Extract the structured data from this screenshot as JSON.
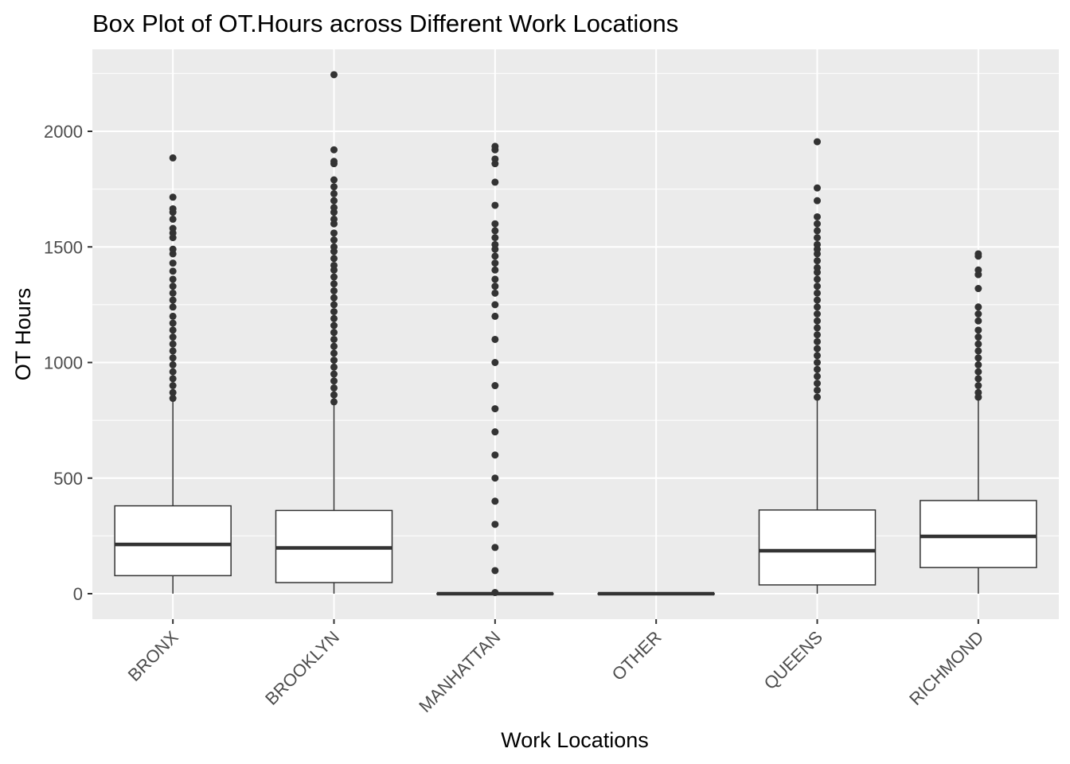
{
  "chart_data": {
    "type": "box",
    "title": "Box Plot of OT.Hours across Different Work Locations",
    "xlabel": "Work Locations",
    "ylabel": "OT Hours",
    "ylim": [
      -110,
      2345
    ],
    "yticks": [
      0,
      500,
      1000,
      1500,
      2000
    ],
    "grid": true,
    "categories": [
      "BRONX",
      "BROOKLYN",
      "MANHATTAN",
      "OTHER",
      "QUEENS",
      "RICHMOND"
    ],
    "boxes": [
      {
        "category": "BRONX",
        "whisker_low": 0,
        "q1": 78,
        "median": 213,
        "q3": 380,
        "whisker_high": 832,
        "outliers": [
          845,
          870,
          900,
          930,
          960,
          990,
          1020,
          1050,
          1080,
          1110,
          1140,
          1170,
          1200,
          1240,
          1270,
          1300,
          1330,
          1360,
          1395,
          1430,
          1470,
          1490,
          1540,
          1560,
          1580,
          1620,
          1650,
          1665,
          1715,
          1885
        ]
      },
      {
        "category": "BROOKLYN",
        "whisker_low": 0,
        "q1": 48,
        "median": 198,
        "q3": 360,
        "whisker_high": 818,
        "outliers": [
          830,
          860,
          890,
          920,
          950,
          980,
          1010,
          1040,
          1070,
          1100,
          1130,
          1160,
          1190,
          1220,
          1250,
          1280,
          1310,
          1340,
          1370,
          1400,
          1420,
          1450,
          1480,
          1500,
          1530,
          1560,
          1600,
          1620,
          1650,
          1670,
          1700,
          1730,
          1760,
          1790,
          1860,
          1870,
          1920,
          2245
        ]
      },
      {
        "category": "MANHATTAN",
        "whisker_low": 0,
        "q1": 0,
        "median": 0,
        "q3": 0,
        "whisker_high": 0,
        "outliers": [
          5,
          100,
          200,
          300,
          400,
          500,
          600,
          700,
          800,
          900,
          1000,
          1100,
          1200,
          1250,
          1300,
          1330,
          1360,
          1400,
          1430,
          1460,
          1490,
          1510,
          1540,
          1570,
          1600,
          1680,
          1780,
          1860,
          1880,
          1920,
          1935
        ]
      },
      {
        "category": "OTHER",
        "whisker_low": 0,
        "q1": 0,
        "median": 0,
        "q3": 0,
        "whisker_high": 0,
        "outliers": []
      },
      {
        "category": "QUEENS",
        "whisker_low": 0,
        "q1": 38,
        "median": 186,
        "q3": 362,
        "whisker_high": 840,
        "outliers": [
          850,
          880,
          910,
          940,
          970,
          1000,
          1030,
          1060,
          1090,
          1120,
          1150,
          1180,
          1210,
          1240,
          1270,
          1300,
          1330,
          1360,
          1390,
          1410,
          1440,
          1470,
          1490,
          1510,
          1540,
          1570,
          1600,
          1630,
          1700,
          1755,
          1955
        ]
      },
      {
        "category": "RICHMOND",
        "whisker_low": 0,
        "q1": 113,
        "median": 248,
        "q3": 403,
        "whisker_high": 838,
        "outliers": [
          850,
          870,
          900,
          930,
          960,
          990,
          1020,
          1050,
          1080,
          1110,
          1140,
          1180,
          1210,
          1240,
          1320,
          1380,
          1400,
          1460,
          1470
        ]
      }
    ]
  }
}
